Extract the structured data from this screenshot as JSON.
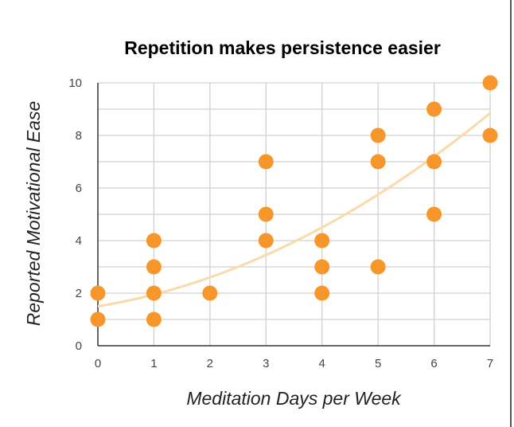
{
  "chart_data": {
    "type": "scatter",
    "title": "Repetition makes persistence easier",
    "xlabel": "Meditation Days per Week",
    "ylabel": "Reported Motivational Ease",
    "xlim": [
      0,
      7
    ],
    "ylim": [
      0,
      10
    ],
    "xticks": [
      "0",
      "1",
      "2",
      "3",
      "4",
      "5",
      "6",
      "7"
    ],
    "yticks": [
      "0",
      "2",
      "4",
      "6",
      "8",
      "10"
    ],
    "grid": true,
    "point_color": "#f7962a",
    "trend_color": "#fcd9a8",
    "points": [
      {
        "x": 0,
        "y": 2
      },
      {
        "x": 0,
        "y": 1
      },
      {
        "x": 1,
        "y": 4
      },
      {
        "x": 1,
        "y": 3
      },
      {
        "x": 1,
        "y": 2
      },
      {
        "x": 1,
        "y": 1
      },
      {
        "x": 2,
        "y": 2
      },
      {
        "x": 3,
        "y": 7
      },
      {
        "x": 3,
        "y": 5
      },
      {
        "x": 3,
        "y": 4
      },
      {
        "x": 4,
        "y": 4
      },
      {
        "x": 4,
        "y": 3
      },
      {
        "x": 4,
        "y": 2
      },
      {
        "x": 5,
        "y": 8
      },
      {
        "x": 5,
        "y": 7
      },
      {
        "x": 5,
        "y": 3
      },
      {
        "x": 6,
        "y": 9
      },
      {
        "x": 6,
        "y": 7
      },
      {
        "x": 6,
        "y": 5
      },
      {
        "x": 7,
        "y": 10
      },
      {
        "x": 7,
        "y": 8
      }
    ],
    "trendline": {
      "type": "quadratic",
      "coefficients": [
        1.5,
        0.35,
        0.1
      ]
    }
  }
}
